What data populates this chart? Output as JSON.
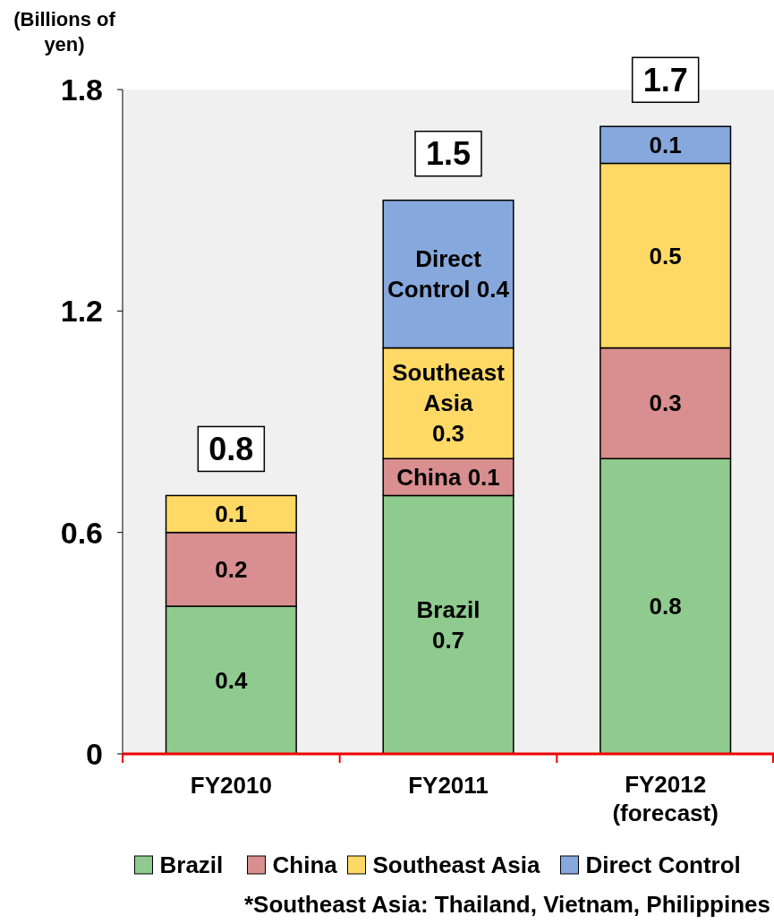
{
  "chart_data": {
    "type": "bar",
    "stacked": true,
    "ylabel": "(Billions of yen)",
    "categories": [
      "FY2010",
      "FY2011",
      "FY2012\n(forecast)"
    ],
    "series": [
      {
        "name": "Brazil",
        "color": "#8fca8f",
        "values": [
          0.4,
          0.7,
          0.8
        ],
        "value_labels": [
          "0.4",
          "Brazil\n0.7",
          "0.8"
        ]
      },
      {
        "name": "China",
        "color": "#d98f8f",
        "values": [
          0.2,
          0.1,
          0.3
        ],
        "value_labels": [
          "0.2",
          "China 0.1",
          "0.3"
        ]
      },
      {
        "name": "Southeast Asia",
        "color": "#ffd966",
        "values": [
          0.1,
          0.3,
          0.5
        ],
        "value_labels": [
          "0.1",
          "Southeast\nAsia\n0.3",
          "0.5"
        ]
      },
      {
        "name": "Direct Control",
        "color": "#86a8dc",
        "values": [
          null,
          0.4,
          0.1
        ],
        "value_labels": [
          null,
          "Direct\nControl 0.4",
          "0.1"
        ]
      }
    ],
    "totals": [
      "0.8",
      "1.5",
      "1.7"
    ],
    "ylim": [
      0,
      1.8
    ],
    "yticks": [
      0,
      0.6,
      1.2,
      1.8
    ],
    "grid": false,
    "legend": "bottom",
    "annotations": [
      "*Southeast Asia: Thailand, Vietnam, Philippines"
    ]
  }
}
